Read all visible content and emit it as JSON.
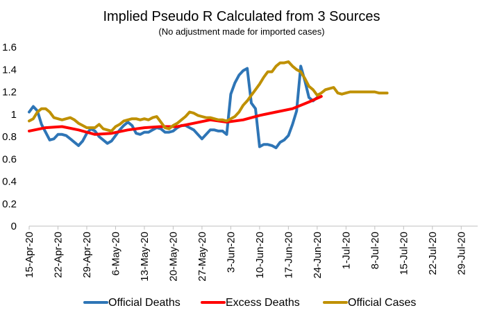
{
  "chart_data": {
    "type": "line",
    "title": "Implied Pseudo R Calculated from 3 Sources",
    "subtitle": "(No adjustment made for imported cases)",
    "xlabel": "",
    "ylabel": "",
    "ylim": [
      0,
      1.6
    ],
    "yticks": [
      0,
      0.2,
      0.4,
      0.6,
      0.8,
      1,
      1.2,
      1.4,
      1.6
    ],
    "ytick_labels": [
      "0",
      "0.2",
      "0.4",
      "0.6",
      "0.8",
      "1",
      "1.2",
      "1.4",
      "1.6"
    ],
    "xlim": [
      "2020-04-15",
      "2020-08-02"
    ],
    "xticks": [
      "2020-04-15",
      "2020-04-22",
      "2020-04-29",
      "2020-05-06",
      "2020-05-13",
      "2020-05-20",
      "2020-05-27",
      "2020-06-03",
      "2020-06-10",
      "2020-06-17",
      "2020-06-24",
      "2020-07-01",
      "2020-07-08",
      "2020-07-15",
      "2020-07-22",
      "2020-07-29"
    ],
    "xtick_labels": [
      "15-Apr-20",
      "22-Apr-20",
      "29-Apr-20",
      "6-May-20",
      "13-May-20",
      "20-May-20",
      "27-May-20",
      "3-Jun-20",
      "10-Jun-20",
      "17-Jun-20",
      "24-Jun-20",
      "1-Jul-20",
      "8-Jul-20",
      "15-Jul-20",
      "22-Jul-20",
      "29-Jul-20"
    ],
    "grid": false,
    "legend": "bottom",
    "series": [
      {
        "name": "Official Deaths",
        "color": "#2e75b6",
        "x": [
          "2020-04-15",
          "2020-04-16",
          "2020-04-17",
          "2020-04-18",
          "2020-04-19",
          "2020-04-20",
          "2020-04-21",
          "2020-04-22",
          "2020-04-23",
          "2020-04-24",
          "2020-04-25",
          "2020-04-26",
          "2020-04-27",
          "2020-04-28",
          "2020-04-29",
          "2020-04-30",
          "2020-05-01",
          "2020-05-02",
          "2020-05-03",
          "2020-05-04",
          "2020-05-05",
          "2020-05-06",
          "2020-05-07",
          "2020-05-08",
          "2020-05-09",
          "2020-05-10",
          "2020-05-11",
          "2020-05-12",
          "2020-05-13",
          "2020-05-14",
          "2020-05-15",
          "2020-05-16",
          "2020-05-17",
          "2020-05-18",
          "2020-05-19",
          "2020-05-20",
          "2020-05-21",
          "2020-05-22",
          "2020-05-23",
          "2020-05-24",
          "2020-05-25",
          "2020-05-26",
          "2020-05-27",
          "2020-05-28",
          "2020-05-29",
          "2020-05-30",
          "2020-05-31",
          "2020-06-01",
          "2020-06-02",
          "2020-06-03",
          "2020-06-04",
          "2020-06-05",
          "2020-06-06",
          "2020-06-07",
          "2020-06-08",
          "2020-06-09",
          "2020-06-10",
          "2020-06-11",
          "2020-06-12",
          "2020-06-13",
          "2020-06-14",
          "2020-06-15",
          "2020-06-16",
          "2020-06-17",
          "2020-06-18",
          "2020-06-19",
          "2020-06-20",
          "2020-06-21",
          "2020-06-22",
          "2020-06-23",
          "2020-06-24"
        ],
        "values": [
          1.02,
          1.07,
          1.03,
          0.91,
          0.84,
          0.77,
          0.78,
          0.82,
          0.82,
          0.81,
          0.78,
          0.75,
          0.72,
          0.76,
          0.83,
          0.87,
          0.85,
          0.8,
          0.77,
          0.74,
          0.76,
          0.81,
          0.86,
          0.9,
          0.93,
          0.9,
          0.83,
          0.82,
          0.84,
          0.84,
          0.86,
          0.88,
          0.87,
          0.84,
          0.84,
          0.85,
          0.88,
          0.9,
          0.9,
          0.88,
          0.86,
          0.82,
          0.78,
          0.82,
          0.86,
          0.86,
          0.85,
          0.85,
          0.82,
          1.18,
          1.28,
          1.35,
          1.39,
          1.41,
          1.1,
          1.05,
          0.71,
          0.73,
          0.73,
          0.72,
          0.7,
          0.75,
          0.77,
          0.81,
          0.91,
          1.03,
          1.43,
          1.3,
          1.15,
          1.12,
          1.15
        ]
      },
      {
        "name": "Excess Deaths",
        "color": "#ff0000",
        "x": [
          "2020-04-15",
          "2020-04-19",
          "2020-04-23",
          "2020-04-27",
          "2020-05-01",
          "2020-05-05",
          "2020-05-09",
          "2020-05-13",
          "2020-05-17",
          "2020-05-21",
          "2020-05-25",
          "2020-05-29",
          "2020-06-02",
          "2020-06-06",
          "2020-06-10",
          "2020-06-14",
          "2020-06-18",
          "2020-06-22",
          "2020-06-25"
        ],
        "values": [
          0.85,
          0.88,
          0.89,
          0.86,
          0.82,
          0.83,
          0.86,
          0.88,
          0.89,
          0.89,
          0.92,
          0.95,
          0.93,
          0.95,
          0.99,
          1.02,
          1.05,
          1.11,
          1.16
        ]
      },
      {
        "name": "Official Cases",
        "color": "#bf9000",
        "x": [
          "2020-04-15",
          "2020-04-16",
          "2020-04-17",
          "2020-04-18",
          "2020-04-19",
          "2020-04-20",
          "2020-04-21",
          "2020-04-22",
          "2020-04-23",
          "2020-04-24",
          "2020-04-25",
          "2020-04-26",
          "2020-04-27",
          "2020-04-28",
          "2020-04-29",
          "2020-04-30",
          "2020-05-01",
          "2020-05-02",
          "2020-05-03",
          "2020-05-04",
          "2020-05-05",
          "2020-05-06",
          "2020-05-07",
          "2020-05-08",
          "2020-05-09",
          "2020-05-10",
          "2020-05-11",
          "2020-05-12",
          "2020-05-13",
          "2020-05-14",
          "2020-05-15",
          "2020-05-16",
          "2020-05-17",
          "2020-05-18",
          "2020-05-19",
          "2020-05-20",
          "2020-05-21",
          "2020-05-22",
          "2020-05-23",
          "2020-05-24",
          "2020-05-25",
          "2020-05-26",
          "2020-05-27",
          "2020-05-28",
          "2020-05-29",
          "2020-05-30",
          "2020-05-31",
          "2020-06-01",
          "2020-06-02",
          "2020-06-03",
          "2020-06-04",
          "2020-06-05",
          "2020-06-06",
          "2020-06-07",
          "2020-06-08",
          "2020-06-09",
          "2020-06-10",
          "2020-06-11",
          "2020-06-12",
          "2020-06-13",
          "2020-06-14",
          "2020-06-15",
          "2020-06-16",
          "2020-06-17",
          "2020-06-18",
          "2020-06-19",
          "2020-06-20",
          "2020-06-21",
          "2020-06-22",
          "2020-06-23",
          "2020-06-24",
          "2020-06-25",
          "2020-06-26",
          "2020-06-27",
          "2020-06-28",
          "2020-06-29",
          "2020-06-30",
          "2020-07-01",
          "2020-07-02",
          "2020-07-03",
          "2020-07-04",
          "2020-07-05",
          "2020-07-06",
          "2020-07-07",
          "2020-07-08",
          "2020-07-09",
          "2020-07-10",
          "2020-07-11"
        ],
        "values": [
          0.94,
          0.96,
          1.02,
          1.05,
          1.05,
          1.02,
          0.97,
          0.96,
          0.95,
          0.96,
          0.97,
          0.95,
          0.92,
          0.9,
          0.88,
          0.88,
          0.88,
          0.91,
          0.87,
          0.86,
          0.85,
          0.89,
          0.91,
          0.94,
          0.95,
          0.96,
          0.96,
          0.95,
          0.96,
          0.95,
          0.97,
          0.98,
          0.93,
          0.88,
          0.87,
          0.9,
          0.92,
          0.95,
          0.98,
          1.02,
          1.01,
          0.99,
          0.98,
          0.97,
          0.97,
          0.96,
          0.95,
          0.95,
          0.94,
          0.96,
          0.98,
          1.02,
          1.08,
          1.12,
          1.17,
          1.22,
          1.27,
          1.33,
          1.38,
          1.38,
          1.43,
          1.46,
          1.46,
          1.47,
          1.43,
          1.4,
          1.38,
          1.32,
          1.25,
          1.22,
          1.17,
          1.19,
          1.22,
          1.23,
          1.24,
          1.19,
          1.18,
          1.19,
          1.2,
          1.2,
          1.2,
          1.2,
          1.2,
          1.2,
          1.2,
          1.19,
          1.19,
          1.19
        ]
      }
    ]
  }
}
